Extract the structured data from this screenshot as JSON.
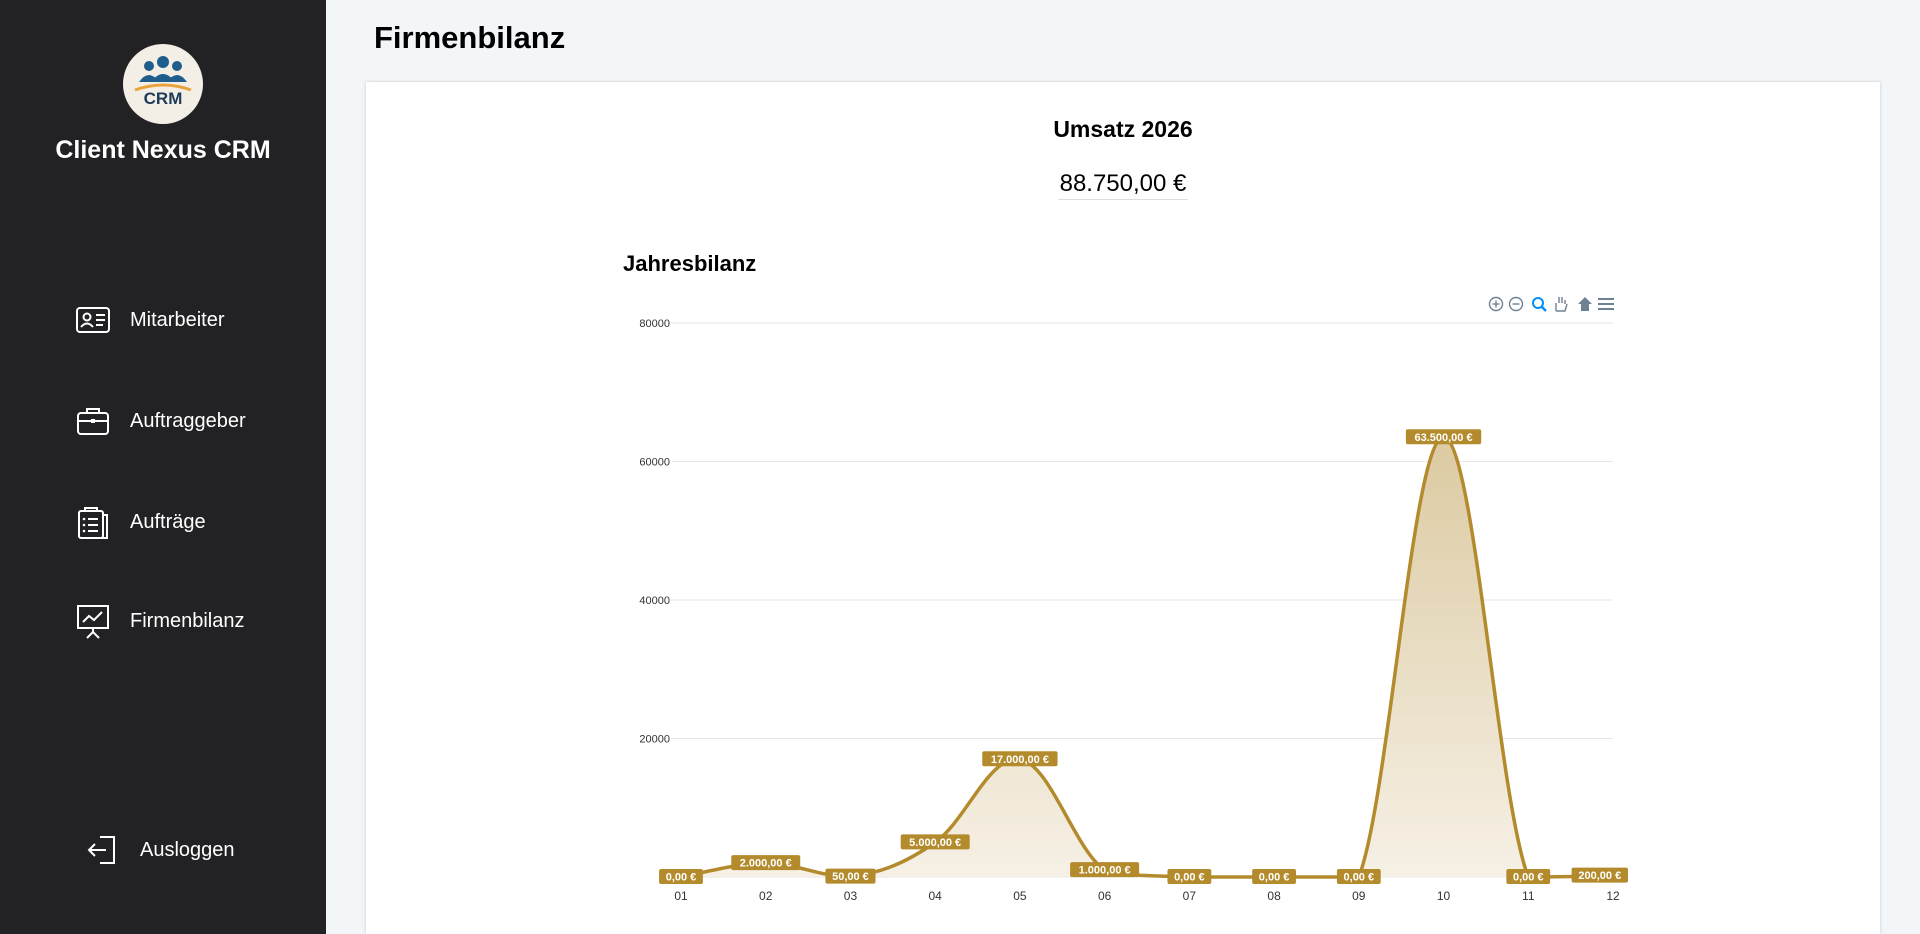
{
  "sidebar": {
    "logo_text": "CRM",
    "app_title": "Client Nexus CRM",
    "items": [
      {
        "label": "Mitarbeiter",
        "icon": "id-card-icon"
      },
      {
        "label": "Auftraggeber",
        "icon": "briefcase-icon"
      },
      {
        "label": "Aufträge",
        "icon": "clipboard-list-icon"
      },
      {
        "label": "Firmenbilanz",
        "icon": "presentation-chart-icon"
      }
    ],
    "logout_label": "Ausloggen",
    "logout_icon": "logout-icon"
  },
  "page": {
    "title": "Firmenbilanz"
  },
  "revenue": {
    "title": "Umsatz 2026",
    "value": "88.750,00 €"
  },
  "colors": {
    "sidebar_bg": "#222124",
    "accent": "#b38b2d",
    "page_bg": "#f3f6f8"
  },
  "chart_data": {
    "type": "area",
    "title": "Jahresbilanz",
    "categories": [
      "01",
      "02",
      "03",
      "04",
      "05",
      "06",
      "07",
      "08",
      "09",
      "10",
      "11",
      "12"
    ],
    "values": [
      0,
      2000,
      50,
      5000,
      17000,
      1000,
      0,
      0,
      0,
      63500,
      0,
      200
    ],
    "data_labels": [
      "0,00 €",
      "2.000,00 €",
      "50,00 €",
      "5.000,00 €",
      "17.000,00 €",
      "1.000,00 €",
      "0,00 €",
      "0,00 €",
      "0,00 €",
      "63.500,00 €",
      "0,00 €",
      "200,00 €"
    ],
    "yticks": [
      "0",
      "20000",
      "40000",
      "60000",
      "80000"
    ],
    "ylim": [
      0,
      80000
    ],
    "grid": true,
    "toolbar": [
      "zoom-in-icon",
      "zoom-out-icon",
      "selection-zoom-icon",
      "pan-icon",
      "reset-home-icon",
      "menu-icon"
    ]
  }
}
